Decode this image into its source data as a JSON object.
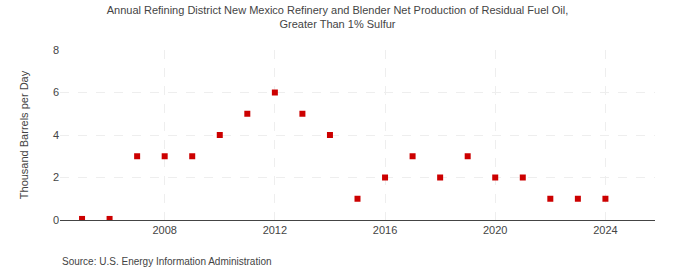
{
  "chart_data": {
    "type": "scatter",
    "title": "Annual Refining District New Mexico Refinery and Blender Net Production of Residual Fuel Oil,\nGreater Than 1% Sulfur",
    "ylabel": "Thousand Barrels per Day",
    "annotations": [
      "Source: U.S. Energy Information Administration"
    ],
    "x": [
      2005,
      2006,
      2007,
      2008,
      2009,
      2010,
      2011,
      2012,
      2013,
      2014,
      2015,
      2016,
      2017,
      2018,
      2019,
      2020,
      2021,
      2022,
      2023,
      2024
    ],
    "values": [
      0.05,
      0.05,
      3,
      3,
      3,
      4,
      5,
      6,
      5,
      4,
      1,
      2,
      3,
      2,
      3,
      2,
      2,
      1,
      1,
      1
    ],
    "color": "#cc0000",
    "marker": "square",
    "xlim": [
      2004.2,
      2025.8
    ],
    "xticks": [
      2008,
      2012,
      2016,
      2020,
      2024
    ],
    "ylim": [
      0,
      8
    ],
    "yticks": [
      0,
      2,
      4,
      6,
      8
    ],
    "grid": true
  }
}
